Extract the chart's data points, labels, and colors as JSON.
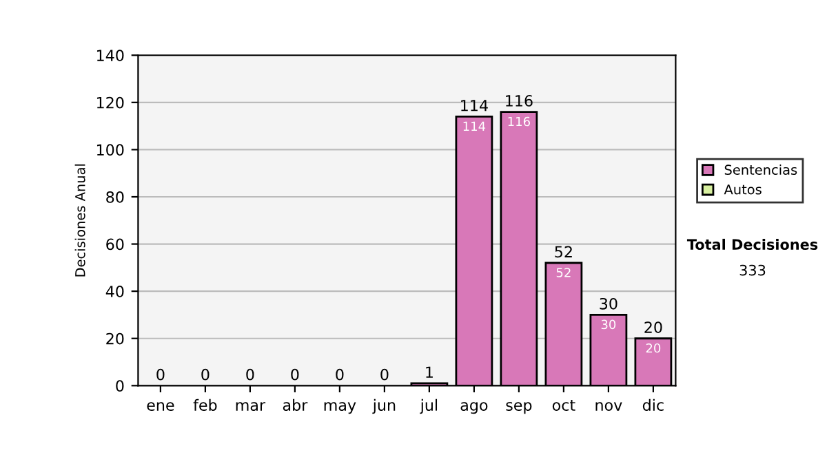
{
  "chart_data": {
    "type": "bar",
    "stacked": true,
    "ylabel": "Decisiones Anual",
    "categories": [
      "ene",
      "feb",
      "mar",
      "abr",
      "may",
      "jun",
      "jul",
      "ago",
      "sep",
      "oct",
      "nov",
      "dic"
    ],
    "series": [
      {
        "name": "Sentencias",
        "color": "#d878b8",
        "values": [
          0,
          0,
          0,
          0,
          0,
          0,
          1,
          114,
          116,
          52,
          30,
          20
        ],
        "value_labels": [
          null,
          null,
          null,
          null,
          null,
          null,
          null,
          "114",
          "116",
          "52",
          "30",
          "20"
        ]
      },
      {
        "name": "Autos",
        "color": "#d8f0a0",
        "values": [
          0,
          0,
          0,
          0,
          0,
          0,
          0,
          0,
          0,
          0,
          0,
          0
        ]
      }
    ],
    "totals": [
      "0",
      "0",
      "0",
      "0",
      "0",
      "0",
      "1",
      "114",
      "116",
      "52",
      "30",
      "20"
    ],
    "ylim": [
      0,
      140
    ],
    "yticks": [
      0,
      20,
      40,
      60,
      80,
      100,
      120,
      140
    ],
    "grid": "y",
    "legend": "right",
    "annotations": [
      "Total Decisiones",
      "333"
    ]
  }
}
